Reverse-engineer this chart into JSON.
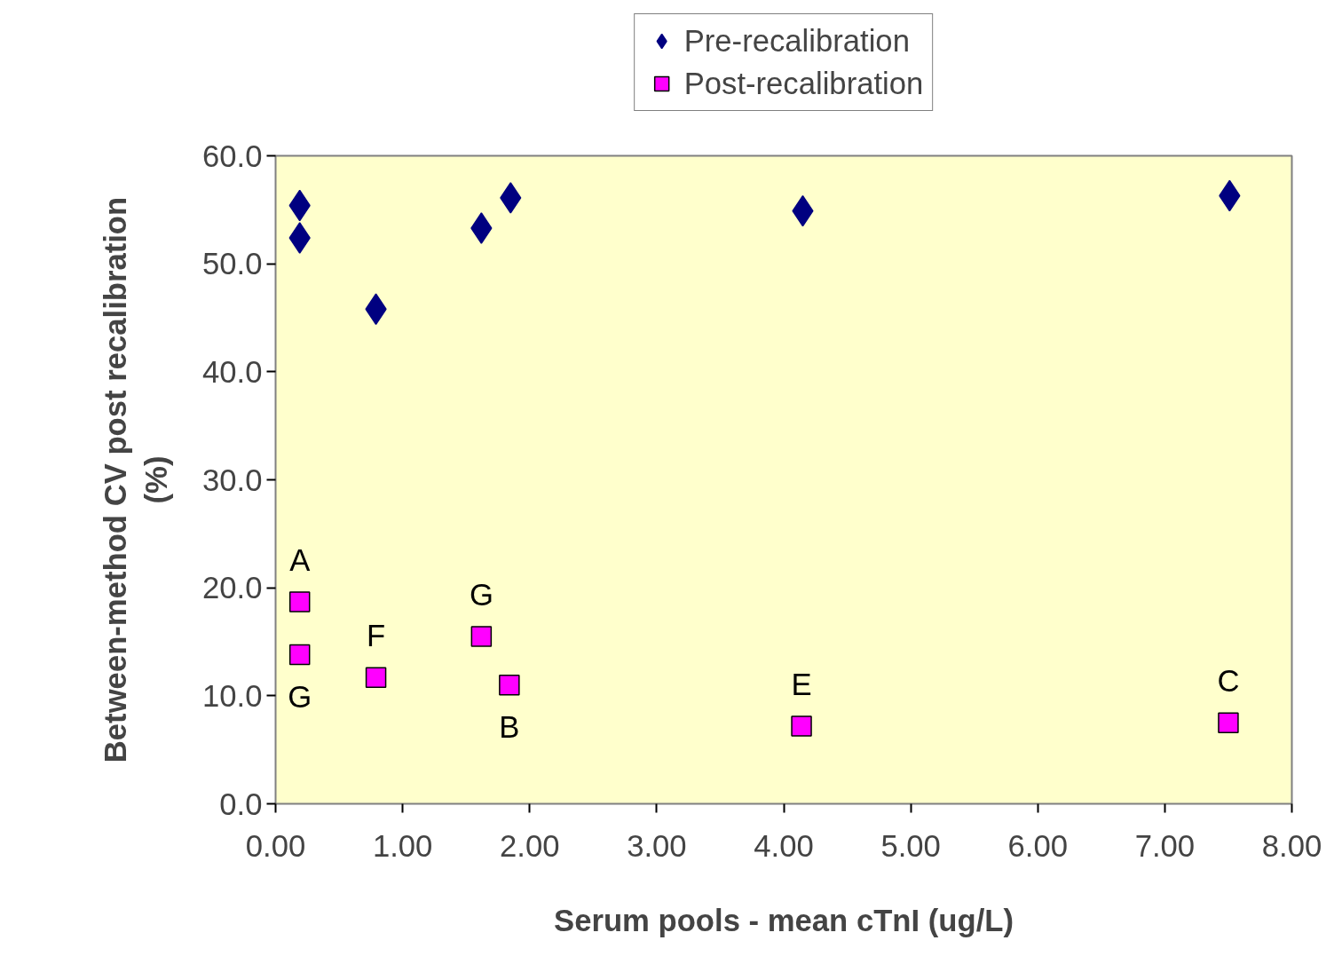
{
  "chart_data": {
    "type": "scatter",
    "xlabel": "Serum pools - mean cTnI (ug/L)",
    "ylabel": "Between-method CV post recalibration\n(%)",
    "xlim": [
      0,
      8
    ],
    "ylim": [
      0,
      60
    ],
    "xticks": [
      {
        "value": 0,
        "label": "0.00"
      },
      {
        "value": 1,
        "label": "1.00"
      },
      {
        "value": 2,
        "label": "2.00"
      },
      {
        "value": 3,
        "label": "3.00"
      },
      {
        "value": 4,
        "label": "4.00"
      },
      {
        "value": 5,
        "label": "5.00"
      },
      {
        "value": 6,
        "label": "6.00"
      },
      {
        "value": 7,
        "label": "7.00"
      },
      {
        "value": 8,
        "label": "8.00"
      }
    ],
    "yticks": [
      {
        "value": 0,
        "label": "0.0"
      },
      {
        "value": 10,
        "label": "10.0"
      },
      {
        "value": 20,
        "label": "20.0"
      },
      {
        "value": 30,
        "label": "30.0"
      },
      {
        "value": 40,
        "label": "40.0"
      },
      {
        "value": 50,
        "label": "50.0"
      },
      {
        "value": 60,
        "label": "60.0"
      }
    ],
    "grid": false,
    "legend": "top",
    "series": [
      {
        "name": "Pre-recalibration",
        "color": "#000080",
        "marker": "diamond",
        "x": [
          0.19,
          0.19,
          0.79,
          1.62,
          1.85,
          4.15,
          7.51
        ],
        "values": [
          55.4,
          52.4,
          45.8,
          53.3,
          56.1,
          54.9,
          56.3
        ]
      },
      {
        "name": "Post-recalibration",
        "color": "#ff00ff",
        "marker": "square",
        "x": [
          0.19,
          0.19,
          0.79,
          1.62,
          1.84,
          4.14,
          7.5
        ],
        "values": [
          18.7,
          13.8,
          11.7,
          15.5,
          11.0,
          7.2,
          7.5
        ]
      }
    ],
    "annotations": [
      {
        "text": "A",
        "x": 0.19,
        "y": 18.7
      },
      {
        "text": "G",
        "x": 0.19,
        "y": 13.8
      },
      {
        "text": "F",
        "x": 0.79,
        "y": 11.7
      },
      {
        "text": "G",
        "x": 1.62,
        "y": 15.5
      },
      {
        "text": "B",
        "x": 1.84,
        "y": 11.0
      },
      {
        "text": "E",
        "x": 4.14,
        "y": 7.2
      },
      {
        "text": "C",
        "x": 7.5,
        "y": 7.5
      }
    ]
  }
}
